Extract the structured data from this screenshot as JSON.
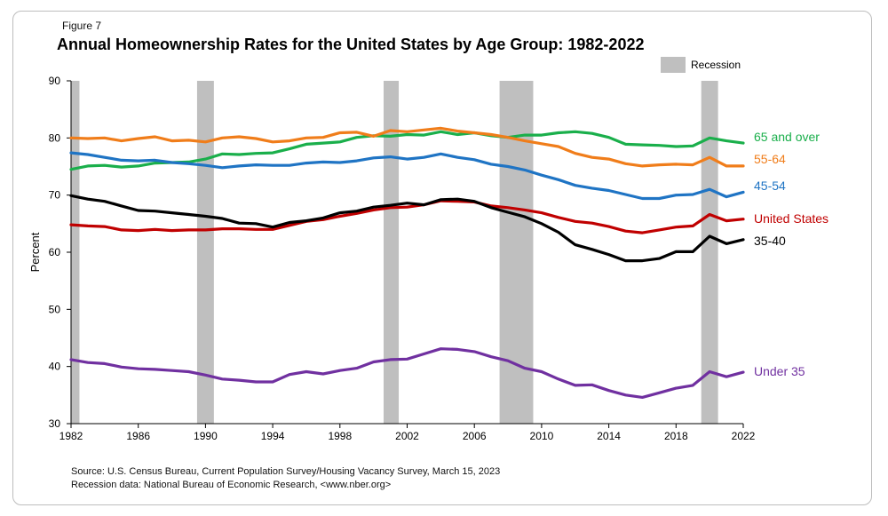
{
  "figure_label": "Figure 7",
  "source_lines": [
    "Source: U.S. Census Bureau, Current Population Survey/Housing Vacancy Survey, March 15, 2023",
    "Recession data: National Bureau of Economic Research, <www.nber.org>"
  ],
  "chart_data": {
    "type": "line",
    "title": "Annual Homeownership Rates for the United States by Age Group: 1982-2022",
    "xlabel": "",
    "ylabel": "Percent",
    "xlim": [
      1982,
      2022
    ],
    "ylim": [
      30,
      90
    ],
    "x_ticks": [
      "1982",
      "1986",
      "1990",
      "1994",
      "1998",
      "2002",
      "2006",
      "2010",
      "2014",
      "2018",
      "2022"
    ],
    "y_ticks": [
      "30",
      "40",
      "50",
      "60",
      "70",
      "80",
      "90"
    ],
    "legend": {
      "label": "Recession",
      "color": "#bfbfbf"
    },
    "recessions": [
      [
        1982,
        1982.5
      ],
      [
        1989.5,
        1990.5
      ],
      [
        2000.6,
        2001.5
      ],
      [
        2007.5,
        2009.5
      ],
      [
        2019.5,
        2020.5
      ]
    ],
    "x": [
      1982,
      1983,
      1984,
      1985,
      1986,
      1987,
      1988,
      1989,
      1990,
      1991,
      1992,
      1993,
      1994,
      1995,
      1996,
      1997,
      1998,
      1999,
      2000,
      2001,
      2002,
      2003,
      2004,
      2005,
      2006,
      2007,
      2008,
      2009,
      2010,
      2011,
      2012,
      2013,
      2014,
      2015,
      2016,
      2017,
      2018,
      2019,
      2020,
      2021,
      2022
    ],
    "series": [
      {
        "name": "65 and over",
        "color": "#1aaf4b",
        "values": [
          74.5,
          75.1,
          75.2,
          74.9,
          75.1,
          75.6,
          75.7,
          75.8,
          76.3,
          77.2,
          77.1,
          77.3,
          77.4,
          78.1,
          78.9,
          79.1,
          79.3,
          80.1,
          80.4,
          80.3,
          80.6,
          80.5,
          81.1,
          80.6,
          80.9,
          80.4,
          80.1,
          80.5,
          80.5,
          80.9,
          81.1,
          80.8,
          80.1,
          78.9,
          78.8,
          78.7,
          78.5,
          78.6,
          80.0,
          79.5,
          79.1
        ]
      },
      {
        "name": "55-64",
        "color": "#f07d1a",
        "values": [
          80.0,
          79.9,
          80.0,
          79.5,
          79.9,
          80.2,
          79.5,
          79.6,
          79.3,
          80.0,
          80.2,
          79.9,
          79.3,
          79.5,
          80.0,
          80.1,
          80.9,
          81.0,
          80.3,
          81.3,
          81.1,
          81.4,
          81.7,
          81.2,
          80.9,
          80.6,
          80.1,
          79.5,
          79.0,
          78.5,
          77.3,
          76.6,
          76.3,
          75.5,
          75.1,
          75.3,
          75.4,
          75.3,
          76.6,
          75.1,
          75.1
        ]
      },
      {
        "name": "45-54",
        "color": "#1f74c4",
        "values": [
          77.4,
          77.1,
          76.6,
          76.1,
          76.0,
          76.1,
          75.7,
          75.5,
          75.2,
          74.8,
          75.1,
          75.3,
          75.2,
          75.2,
          75.6,
          75.8,
          75.7,
          76.0,
          76.5,
          76.7,
          76.3,
          76.6,
          77.2,
          76.6,
          76.2,
          75.4,
          75.0,
          74.4,
          73.5,
          72.7,
          71.7,
          71.2,
          70.8,
          70.1,
          69.4,
          69.4,
          70.0,
          70.1,
          71.0,
          69.7,
          70.5
        ]
      },
      {
        "name": "United States",
        "color": "#c00000",
        "values": [
          64.8,
          64.6,
          64.5,
          63.9,
          63.8,
          64.0,
          63.8,
          63.9,
          63.9,
          64.1,
          64.1,
          64.0,
          64.0,
          64.7,
          65.4,
          65.7,
          66.3,
          66.8,
          67.4,
          67.8,
          67.9,
          68.3,
          69.0,
          68.9,
          68.8,
          68.1,
          67.8,
          67.4,
          66.9,
          66.1,
          65.4,
          65.1,
          64.5,
          63.7,
          63.4,
          63.9,
          64.4,
          64.6,
          66.6,
          65.5,
          65.8
        ]
      },
      {
        "name": "35-40",
        "color": "#000000",
        "values": [
          69.9,
          69.3,
          68.9,
          68.1,
          67.3,
          67.2,
          66.9,
          66.6,
          66.3,
          65.9,
          65.1,
          65.0,
          64.4,
          65.2,
          65.5,
          66.0,
          66.9,
          67.2,
          67.9,
          68.2,
          68.6,
          68.3,
          69.2,
          69.3,
          68.9,
          67.8,
          67.0,
          66.2,
          65.0,
          63.5,
          61.3,
          60.5,
          59.6,
          58.5,
          58.5,
          58.9,
          60.1,
          60.1,
          62.8,
          61.5,
          62.2
        ]
      },
      {
        "name": "Under 35",
        "color": "#7030a0",
        "values": [
          41.2,
          40.7,
          40.5,
          39.9,
          39.6,
          39.5,
          39.3,
          39.1,
          38.5,
          37.8,
          37.6,
          37.3,
          37.3,
          38.6,
          39.1,
          38.7,
          39.3,
          39.7,
          40.8,
          41.2,
          41.3,
          42.2,
          43.1,
          43.0,
          42.6,
          41.7,
          41.0,
          39.7,
          39.1,
          37.8,
          36.7,
          36.8,
          35.8,
          35.0,
          34.6,
          35.4,
          36.2,
          36.7,
          39.1,
          38.2,
          39.0
        ]
      }
    ]
  }
}
